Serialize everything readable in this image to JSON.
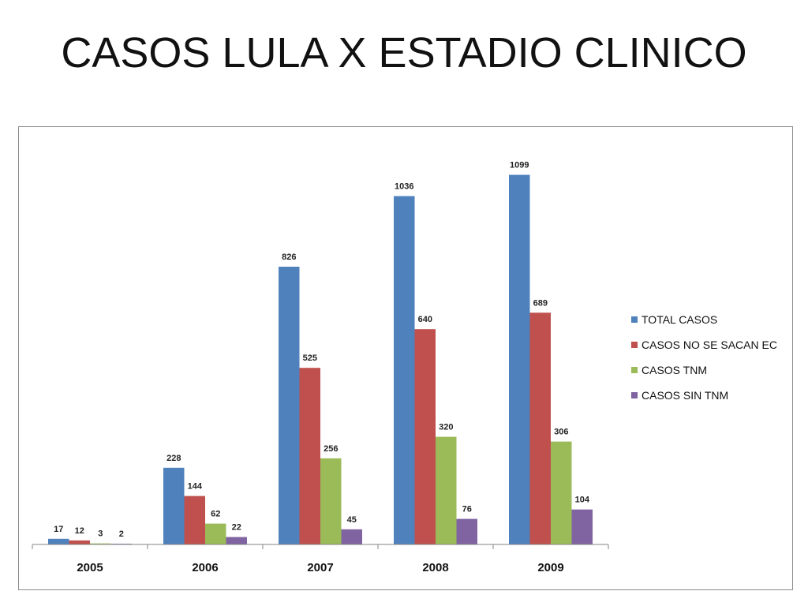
{
  "slide": {
    "title": "CASOS LULA X ESTADIO CLINICO"
  },
  "chart_data": {
    "type": "bar",
    "title": "",
    "xlabel": "",
    "ylabel": "",
    "categories": [
      "2005",
      "2006",
      "2007",
      "2008",
      "2009"
    ],
    "ylim": [
      0,
      1150
    ],
    "grid": false,
    "legend_position": "right",
    "series": [
      {
        "name": "TOTAL CASOS",
        "color": "#4f81bd",
        "values": [
          17,
          228,
          826,
          1036,
          1099
        ]
      },
      {
        "name": "CASOS NO SE SACAN EC",
        "color": "#c0504d",
        "values": [
          12,
          144,
          525,
          640,
          689
        ]
      },
      {
        "name": "CASOS TNM",
        "color": "#9bbb59",
        "values": [
          3,
          62,
          256,
          320,
          306
        ]
      },
      {
        "name": "CASOS SIN TNM",
        "color": "#8064a2",
        "values": [
          2,
          22,
          45,
          76,
          104
        ]
      }
    ]
  }
}
